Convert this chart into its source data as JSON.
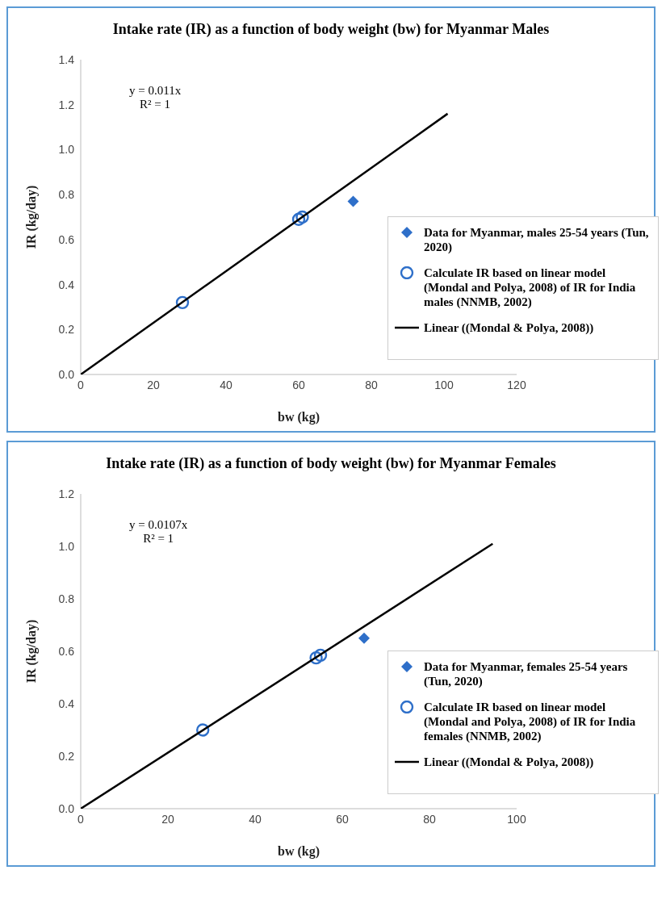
{
  "chart_data": [
    {
      "type": "scatter",
      "title": "Intake rate (IR) as a function of body weight (bw) for Myanmar Males",
      "xlabel": "bw (kg)",
      "ylabel": "IR (kg/day)",
      "annotations": [
        "y = 0.011x",
        "R² = 1"
      ],
      "xlim": [
        0,
        120
      ],
      "xticks": [
        0,
        20,
        40,
        60,
        80,
        100,
        120
      ],
      "ylim": [
        0,
        1.4
      ],
      "yticks": [
        {
          "value": 0,
          "label": "0.0"
        },
        {
          "value": 0.2,
          "label": "0.2"
        },
        {
          "value": 0.4,
          "label": "0.4"
        },
        {
          "value": 0.6,
          "label": "0.6"
        },
        {
          "value": 0.8,
          "label": "0.8"
        },
        {
          "value": 1.0,
          "label": "1.0"
        },
        {
          "value": 1.2,
          "label": "1.2"
        },
        {
          "value": 1.4,
          "label": "1.4"
        }
      ],
      "legend": "right",
      "series": [
        {
          "name": "Data for Myanmar, males 25-54 years (Tun, 2020)",
          "type": "scatter",
          "marker": "diamond",
          "color": "#2e6fc9",
          "x": [
            75
          ],
          "values": [
            0.77
          ]
        },
        {
          "name": "Calculate IR based on linear model (Mondal and Polya, 2008) of IR for India males (NNMB, 2002)",
          "type": "scatter",
          "marker": "circle",
          "color": "#2e6fc9",
          "x": [
            28,
            60,
            61
          ],
          "values": [
            0.32,
            0.69,
            0.7
          ]
        },
        {
          "name": "Linear ((Mondal & Polya, 2008))",
          "type": "line",
          "marker": "none",
          "line_style": "solid",
          "color": "#000000",
          "x": [
            0,
            101
          ],
          "values": [
            0,
            1.16
          ]
        }
      ]
    },
    {
      "type": "scatter",
      "title": "Intake rate (IR) as a function of body weight (bw) for Myanmar Females",
      "xlabel": "bw (kg)",
      "ylabel": "IR (kg/day)",
      "annotations": [
        "y = 0.0107x",
        "R² = 1"
      ],
      "xlim": [
        0,
        100
      ],
      "xticks": [
        0,
        20,
        40,
        60,
        80,
        100
      ],
      "ylim": [
        0,
        1.2
      ],
      "yticks": [
        {
          "value": 0,
          "label": "0.0"
        },
        {
          "value": 0.2,
          "label": "0.2"
        },
        {
          "value": 0.4,
          "label": "0.4"
        },
        {
          "value": 0.6,
          "label": "0.6"
        },
        {
          "value": 0.8,
          "label": "0.8"
        },
        {
          "value": 1.0,
          "label": "1.0"
        },
        {
          "value": 1.2,
          "label": "1.2"
        }
      ],
      "legend": "right",
      "series": [
        {
          "name": "Data for Myanmar, females 25-54 years (Tun, 2020)",
          "type": "scatter",
          "marker": "diamond",
          "color": "#2e6fc9",
          "x": [
            65
          ],
          "values": [
            0.65
          ]
        },
        {
          "name": "Calculate IR based on linear model (Mondal and Polya, 2008) of IR for India females (NNMB, 2002)",
          "type": "scatter",
          "marker": "circle",
          "color": "#2e6fc9",
          "x": [
            28,
            54,
            55
          ],
          "values": [
            0.3,
            0.575,
            0.585
          ]
        },
        {
          "name": "Linear ((Mondal & Polya, 2008))",
          "type": "line",
          "marker": "none",
          "line_style": "solid",
          "color": "#000000",
          "x": [
            0,
            94.5
          ],
          "values": [
            0,
            1.01
          ]
        }
      ]
    }
  ]
}
